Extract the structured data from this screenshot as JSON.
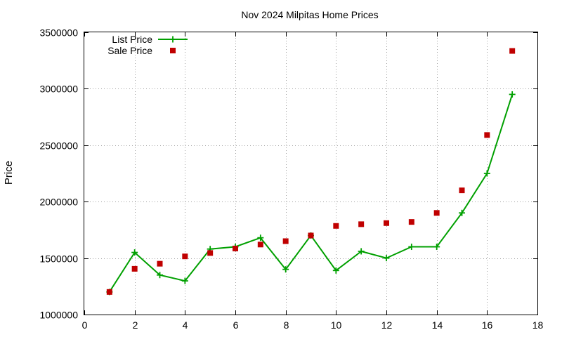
{
  "chart_data": {
    "type": "line",
    "title": "Nov 2024 Milpitas Home Prices",
    "xlabel": "",
    "ylabel": "Price",
    "xlim": [
      0,
      18
    ],
    "ylim": [
      1000000,
      3500000
    ],
    "xticks": [
      0,
      2,
      4,
      6,
      8,
      10,
      12,
      14,
      16,
      18
    ],
    "yticks": [
      1000000,
      1500000,
      2000000,
      2500000,
      3000000,
      3500000
    ],
    "grid": true,
    "legend_position": "top-left",
    "series": [
      {
        "name": "List Price",
        "style": "line-with-plus-markers",
        "color": "#00a000",
        "x": [
          1,
          2,
          3,
          4,
          5,
          6,
          7,
          8,
          9,
          10,
          11,
          12,
          13,
          14,
          15,
          16,
          17
        ],
        "values": [
          1200000,
          1550000,
          1350000,
          1298000,
          1580000,
          1600000,
          1680000,
          1400000,
          1700000,
          1390000,
          1560000,
          1500000,
          1600000,
          1600000,
          1900000,
          2250000,
          2950000
        ]
      },
      {
        "name": "Sale Price",
        "style": "square-markers",
        "color": "#c00000",
        "x": [
          1,
          2,
          3,
          4,
          5,
          6,
          7,
          8,
          9,
          10,
          11,
          12,
          13,
          14,
          15,
          16,
          17
        ],
        "values": [
          1200000,
          1405000,
          1450000,
          1515000,
          1545000,
          1585000,
          1620000,
          1650000,
          1700000,
          1785000,
          1800000,
          1810000,
          1820000,
          1900000,
          2100000,
          2590000,
          3335000
        ]
      }
    ]
  }
}
